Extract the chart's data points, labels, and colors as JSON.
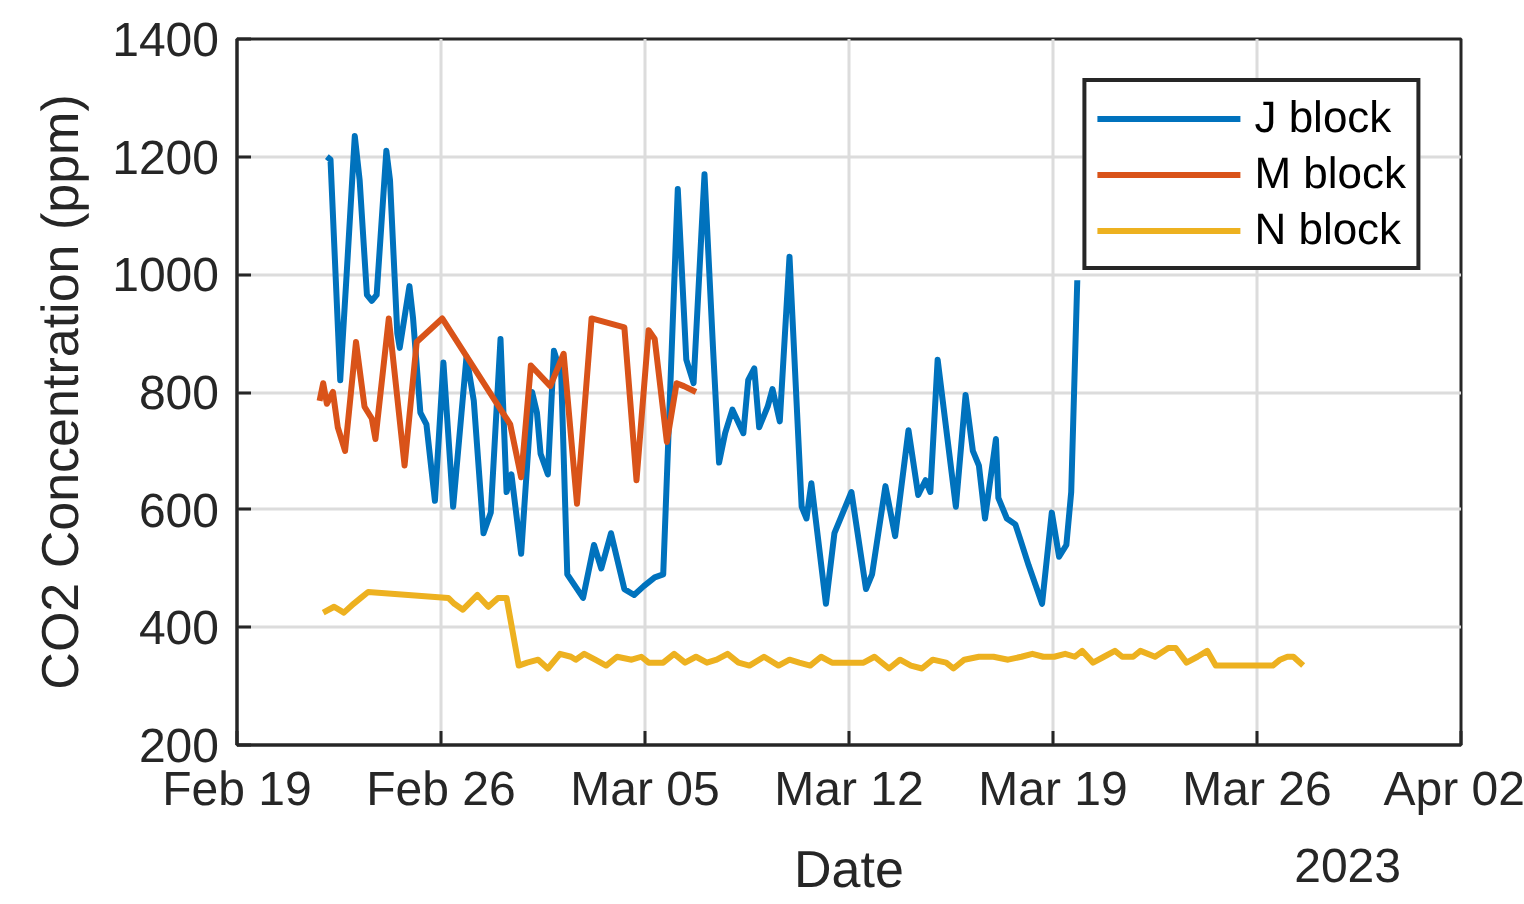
{
  "chart_data": {
    "type": "line",
    "xlabel": "Date",
    "ylabel": "CO2 Concentration (ppm)",
    "annotations": [
      "2023"
    ],
    "xlim": [
      "2023-02-19",
      "2023-04-02"
    ],
    "xticks": [
      {
        "value": "2023-02-19",
        "label": "Feb 19"
      },
      {
        "value": "2023-02-26",
        "label": "Feb 26"
      },
      {
        "value": "2023-03-05",
        "label": "Mar 05"
      },
      {
        "value": "2023-03-12",
        "label": "Mar 12"
      },
      {
        "value": "2023-03-19",
        "label": "Mar 19"
      },
      {
        "value": "2023-03-26",
        "label": "Mar 26"
      },
      {
        "value": "2023-04-02",
        "label": "Apr 02"
      }
    ],
    "ylim": [
      200,
      1400
    ],
    "yticks": [
      200,
      400,
      600,
      800,
      1000,
      1200,
      1400
    ],
    "grid": true,
    "legend": "top right",
    "series": [
      {
        "name": "J block",
        "color": "#0072bd",
        "x": [
          "2023-02-22T02:00",
          "2023-02-22T05:00",
          "2023-02-22T13:00",
          "2023-02-22T18:00",
          "2023-02-23T01:00",
          "2023-02-23T05:00",
          "2023-02-23T11:00",
          "2023-02-23T15:00",
          "2023-02-23T19:00",
          "2023-02-24T03:00",
          "2023-02-24T06:00",
          "2023-02-24T12:00",
          "2023-02-24T14:00",
          "2023-02-24T22:00",
          "2023-02-25T01:00",
          "2023-02-25T07:00",
          "2023-02-25T12:00",
          "2023-02-25T19:00",
          "2023-02-26T02:00",
          "2023-02-26T10:00",
          "2023-02-26T21:00",
          "2023-02-27T03:00",
          "2023-02-27T11:00",
          "2023-02-27T17:00",
          "2023-02-28T01:00",
          "2023-02-28T06:00",
          "2023-02-28T10:00",
          "2023-02-28T18:00",
          "2023-03-01T03:00",
          "2023-03-01T07:00",
          "2023-03-01T10:00",
          "2023-03-01T16:00",
          "2023-03-01T21:00",
          "2023-03-02T03:00",
          "2023-03-02T08:00",
          "2023-03-02T21:00",
          "2023-03-03T06:00",
          "2023-03-03T12:00",
          "2023-03-03T20:00",
          "2023-03-04T07:00",
          "2023-03-04T15:00",
          "2023-03-04T23:00",
          "2023-03-05T08:00",
          "2023-03-05T15:00",
          "2023-03-06T03:00",
          "2023-03-06T10:00",
          "2023-03-06T16:00",
          "2023-03-07T01:00",
          "2023-03-07T08:00",
          "2023-03-07T13:00",
          "2023-03-07T18:00",
          "2023-03-08T00:00",
          "2023-03-08T09:00",
          "2023-03-08T13:00",
          "2023-03-08T18:00",
          "2023-03-08T22:00",
          "2023-03-09T05:00",
          "2023-03-09T09:00",
          "2023-03-09T15:00",
          "2023-03-09T23:00",
          "2023-03-10T09:00",
          "2023-03-10T13:00",
          "2023-03-10T17:00",
          "2023-03-11T05:00",
          "2023-03-11T12:00",
          "2023-03-12T02:00",
          "2023-03-12T14:00",
          "2023-03-12T19:00",
          "2023-03-13T06:00",
          "2023-03-13T14:00",
          "2023-03-14T01:00",
          "2023-03-14T09:00",
          "2023-03-14T15:00",
          "2023-03-14T19:00",
          "2023-03-15T01:00",
          "2023-03-15T16:00",
          "2023-03-16T00:00",
          "2023-03-16T06:00",
          "2023-03-16T11:00",
          "2023-03-16T16:00",
          "2023-03-17T01:00",
          "2023-03-17T03:00",
          "2023-03-17T10:00",
          "2023-03-17T17:00",
          "2023-03-17T21:00",
          "2023-03-18T04:00",
          "2023-03-18T15:00",
          "2023-03-18T23:00",
          "2023-03-19T05:00",
          "2023-03-19T11:00",
          "2023-03-19T15:00",
          "2023-03-19T20:00"
        ],
        "values": [
          1200,
          1195,
          820,
          990,
          1235,
          1160,
          965,
          955,
          965,
          1210,
          1160,
          900,
          875,
          980,
          925,
          765,
          745,
          615,
          850,
          605,
          860,
          785,
          560,
          595,
          890,
          630,
          660,
          525,
          800,
          765,
          695,
          660,
          870,
          830,
          490,
          450,
          540,
          500,
          560,
          465,
          455,
          470,
          485,
          490,
          1145,
          855,
          815,
          1170,
          875,
          680,
          730,
          770,
          730,
          820,
          840,
          740,
          775,
          805,
          750,
          1030,
          605,
          585,
          645,
          440,
          560,
          630,
          465,
          490,
          640,
          555,
          735,
          625,
          650,
          630,
          855,
          605,
          795,
          700,
          675,
          585,
          720,
          620,
          585,
          575,
          550,
          505,
          440,
          595,
          520,
          540,
          630,
          990
        ]
      },
      {
        "name": "M block",
        "color": "#d95319",
        "x": [
          "2023-02-21T20:00",
          "2023-02-21T23:00",
          "2023-02-22T02:00",
          "2023-02-22T07:00",
          "2023-02-22T11:00",
          "2023-02-22T17:00",
          "2023-02-23T02:00",
          "2023-02-23T09:00",
          "2023-02-23T15:00",
          "2023-02-23T18:00",
          "2023-02-24T05:00",
          "2023-02-24T18:00",
          "2023-02-25T04:00",
          "2023-02-26T01:00",
          "2023-02-28T09:00",
          "2023-02-28T18:00",
          "2023-03-01T02:00",
          "2023-03-01T18:00",
          "2023-03-02T05:00",
          "2023-03-02T16:00",
          "2023-03-03T04:00",
          "2023-03-04T07:00",
          "2023-03-04T17:00",
          "2023-03-05T03:00",
          "2023-03-05T08:00",
          "2023-03-05T18:00",
          "2023-03-06T02:00",
          "2023-03-06T08:00",
          "2023-03-06T18:00"
        ],
        "values": [
          785,
          815,
          780,
          800,
          740,
          700,
          885,
          775,
          755,
          720,
          925,
          675,
          885,
          925,
          745,
          655,
          845,
          810,
          865,
          610,
          925,
          910,
          650,
          905,
          890,
          715,
          815,
          810,
          800
        ]
      },
      {
        "name": "N block",
        "color": "#edb120",
        "x": [
          "2023-02-21T23:00",
          "2023-02-22T08:00",
          "2023-02-22T16:00",
          "2023-02-23T00:00",
          "2023-02-23T06:00",
          "2023-02-23T12:00",
          "2023-02-26T06:00",
          "2023-02-26T11:00",
          "2023-02-26T18:00",
          "2023-02-27T06:00",
          "2023-02-27T15:00",
          "2023-02-27T23:00",
          "2023-02-28T06:00",
          "2023-02-28T16:00",
          "2023-02-28T23:00",
          "2023-03-01T08:00",
          "2023-03-01T16:00",
          "2023-03-02T02:00",
          "2023-03-02T11:00",
          "2023-03-02T15:00",
          "2023-03-02T22:00",
          "2023-03-03T07:00",
          "2023-03-03T16:00",
          "2023-03-04T01:00",
          "2023-03-04T13:00",
          "2023-03-04T21:00",
          "2023-03-05T03:00",
          "2023-03-05T15:00",
          "2023-03-06T00:00",
          "2023-03-06T09:00",
          "2023-03-06T18:00",
          "2023-03-07T03:00",
          "2023-03-07T11:00",
          "2023-03-07T20:00",
          "2023-03-08T05:00",
          "2023-03-08T14:00",
          "2023-03-09T02:00",
          "2023-03-09T14:00",
          "2023-03-09T23:00",
          "2023-03-10T07:00",
          "2023-03-10T16:00",
          "2023-03-11T01:00",
          "2023-03-11T10:00",
          "2023-03-12T12:00",
          "2023-03-12T21:00",
          "2023-03-13T09:00",
          "2023-03-13T18:00",
          "2023-03-14T03:00",
          "2023-03-14T12:00",
          "2023-03-14T21:00",
          "2023-03-15T08:00",
          "2023-03-15T14:00",
          "2023-03-15T23:00",
          "2023-03-16T11:00",
          "2023-03-16T23:00",
          "2023-03-17T11:00",
          "2023-03-17T22:00",
          "2023-03-18T07:00",
          "2023-03-18T16:00",
          "2023-03-19T01:00",
          "2023-03-19T10:00",
          "2023-03-19T18:00",
          "2023-03-20T00:00",
          "2023-03-20T09:00",
          "2023-03-20T18:00",
          "2023-03-21T03:00",
          "2023-03-21T09:00",
          "2023-03-21T18:00",
          "2023-03-22T00:00",
          "2023-03-22T12:00",
          "2023-03-22T23:00",
          "2023-03-23T05:00",
          "2023-03-23T14:00",
          "2023-03-23T23:00",
          "2023-03-24T07:00",
          "2023-03-24T14:00",
          "2023-03-26T13:00",
          "2023-03-26T19:00",
          "2023-03-27T01:00",
          "2023-03-27T06:00",
          "2023-03-27T14:00"
        ],
        "values": [
          425,
          435,
          425,
          440,
          450,
          460,
          450,
          440,
          430,
          455,
          435,
          450,
          450,
          335,
          340,
          345,
          330,
          355,
          350,
          345,
          355,
          345,
          335,
          350,
          345,
          350,
          340,
          340,
          355,
          340,
          350,
          340,
          345,
          355,
          340,
          335,
          350,
          335,
          345,
          340,
          335,
          350,
          340,
          340,
          350,
          330,
          345,
          335,
          330,
          345,
          340,
          330,
          345,
          350,
          350,
          345,
          350,
          355,
          350,
          350,
          355,
          350,
          360,
          340,
          350,
          360,
          350,
          350,
          360,
          350,
          365,
          365,
          340,
          350,
          360,
          335,
          335,
          345,
          350,
          350,
          335
        ]
      }
    ]
  }
}
